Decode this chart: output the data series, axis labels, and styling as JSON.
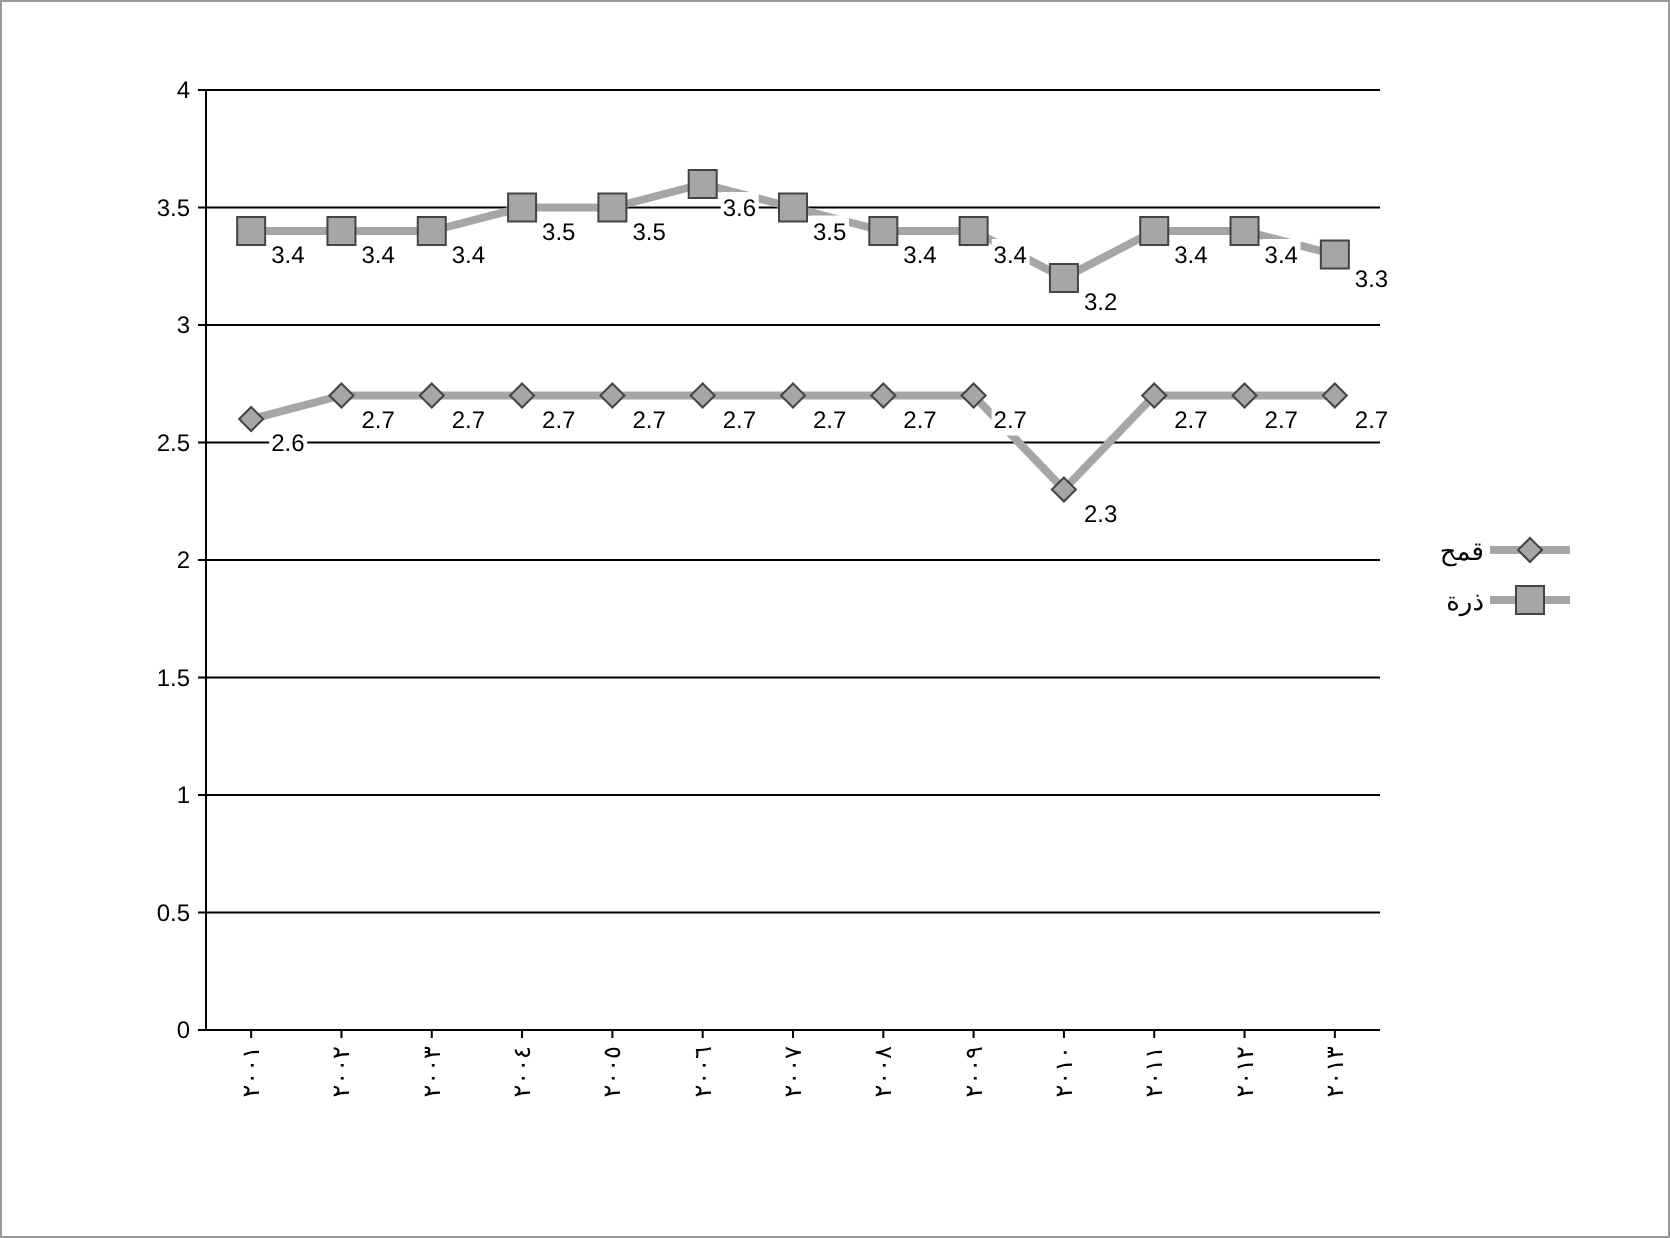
{
  "chart_data": {
    "type": "line",
    "categories": [
      "٢٠٠١",
      "٢٠٠٢",
      "٢٠٠٣",
      "٢٠٠٤",
      "٢٠٠٥",
      "٢٠٠٦",
      "٢٠٠٧",
      "٢٠٠٨",
      "٢٠٠٩",
      "٢٠١٠",
      "٢٠١١",
      "٢٠١٢",
      "٢٠١٣"
    ],
    "series": [
      {
        "name": "قمح",
        "color": "#a6a6a6",
        "marker": "diamond",
        "values": [
          2.6,
          2.7,
          2.7,
          2.7,
          2.7,
          2.7,
          2.7,
          2.7,
          2.7,
          2.3,
          2.7,
          2.7,
          2.7
        ]
      },
      {
        "name": "ذرة",
        "color": "#a6a6a6",
        "marker": "square",
        "values": [
          3.4,
          3.4,
          3.4,
          3.5,
          3.5,
          3.6,
          3.5,
          3.4,
          3.4,
          3.2,
          3.4,
          3.4,
          3.3
        ]
      }
    ],
    "ylim": [
      0,
      4
    ],
    "yticks": [
      0,
      0.5,
      1,
      1.5,
      2,
      2.5,
      3,
      3.5,
      4
    ],
    "grid": "y",
    "legend": "right",
    "data_labels": true
  }
}
